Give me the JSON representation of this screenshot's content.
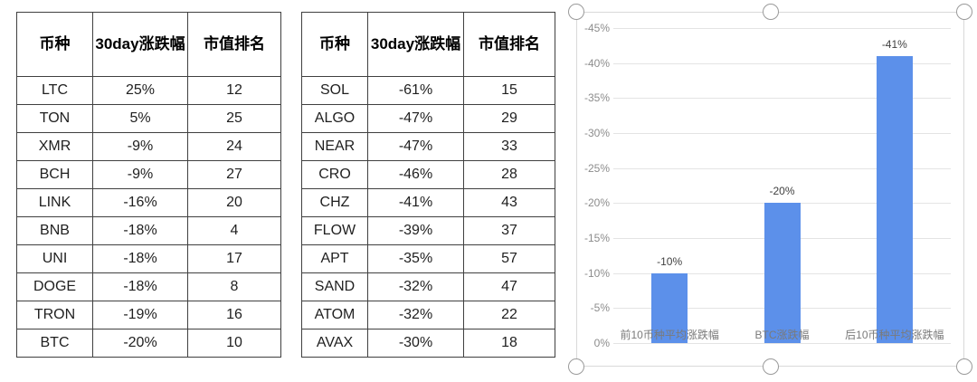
{
  "page": {
    "background": "#ffffff"
  },
  "tables": [
    {
      "name": "top10-coins-table",
      "headers": [
        "币种",
        "30day涨跌幅",
        "市值排名"
      ],
      "rows": [
        [
          "LTC",
          "25%",
          "12"
        ],
        [
          "TON",
          "5%",
          "25"
        ],
        [
          "XMR",
          "-9%",
          "24"
        ],
        [
          "BCH",
          "-9%",
          "27"
        ],
        [
          "LINK",
          "-16%",
          "20"
        ],
        [
          "BNB",
          "-18%",
          "4"
        ],
        [
          "UNI",
          "-18%",
          "17"
        ],
        [
          "DOGE",
          "-18%",
          "8"
        ],
        [
          "TRON",
          "-19%",
          "16"
        ],
        [
          "BTC",
          "-20%",
          "10"
        ]
      ]
    },
    {
      "name": "bottom10-coins-table",
      "headers": [
        "币种",
        "30day涨跌幅",
        "市值排名"
      ],
      "rows": [
        [
          "SOL",
          "-61%",
          "15"
        ],
        [
          "ALGO",
          "-47%",
          "29"
        ],
        [
          "NEAR",
          "-47%",
          "33"
        ],
        [
          "CRO",
          "-46%",
          "28"
        ],
        [
          "CHZ",
          "-41%",
          "43"
        ],
        [
          "FLOW",
          "-39%",
          "37"
        ],
        [
          "APT",
          "-35%",
          "57"
        ],
        [
          "SAND",
          "-32%",
          "47"
        ],
        [
          "ATOM",
          "-32%",
          "22"
        ],
        [
          "AVAX",
          "-30%",
          "18"
        ]
      ]
    }
  ],
  "chart_data": {
    "type": "bar",
    "categories": [
      "前10币种平均涨跌幅",
      "BTC涨跌幅",
      "后10币种平均涨跌幅"
    ],
    "values": [
      -10,
      -20,
      -41
    ],
    "data_labels": [
      "-10%",
      "-20%",
      "-41%"
    ],
    "yticks": [
      "-45%",
      "-40%",
      "-35%",
      "-30%",
      "-25%",
      "-20%",
      "-15%",
      "-10%",
      "-5%",
      "0%"
    ],
    "ylim": [
      0,
      -45
    ],
    "y_axis_inverted": true,
    "grid": true,
    "legend": "none",
    "title": "",
    "xlabel": "",
    "ylabel": "",
    "bar_color": "#5c90ea",
    "gridline_color": "#e4e4e4",
    "tick_color": "#8c8c8c",
    "data_label_color": "#3f3f3f",
    "category_label_color": "#7a7a7a",
    "frame_border_color": "#d9d9d9",
    "chart_selected": true,
    "selection_handles": [
      "top-left",
      "top-middle",
      "top-right",
      "bottom-left",
      "bottom-middle",
      "bottom-right"
    ]
  }
}
